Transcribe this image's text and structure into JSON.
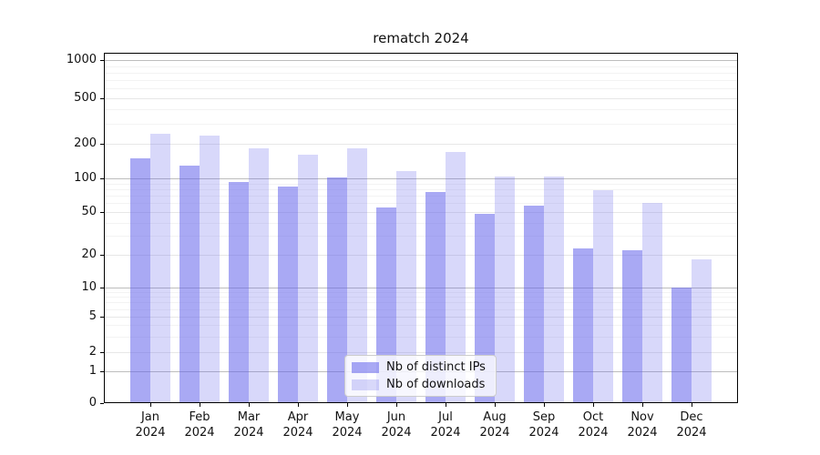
{
  "title": "rematch 2024",
  "chart_data": {
    "type": "bar",
    "title": "rematch 2024",
    "categories": [
      "Jan 2024",
      "Feb 2024",
      "Mar 2024",
      "Apr 2024",
      "May 2024",
      "Jun 2024",
      "Jul 2024",
      "Aug 2024",
      "Sep 2024",
      "Oct 2024",
      "Nov 2024",
      "Dec 2024"
    ],
    "series": [
      {
        "name": "Nb of distinct IPs",
        "color": "rgba(98,98,235,0.55)",
        "values": [
          150,
          130,
          93,
          84,
          102,
          55,
          75,
          48,
          57,
          23,
          22,
          10
        ]
      },
      {
        "name": "Nb of downloads",
        "color": "rgba(98,98,235,0.25)",
        "values": [
          248,
          237,
          185,
          160,
          185,
          115,
          172,
          104,
          103,
          78,
          61,
          18
        ]
      }
    ],
    "xlabel": "",
    "ylabel": "",
    "yscale": "symlog",
    "yticks": [
      0,
      1,
      2,
      5,
      10,
      20,
      50,
      100,
      200,
      500,
      1000
    ],
    "ylim": [
      0,
      1000
    ],
    "grid": true,
    "legend_position": "lower center"
  }
}
